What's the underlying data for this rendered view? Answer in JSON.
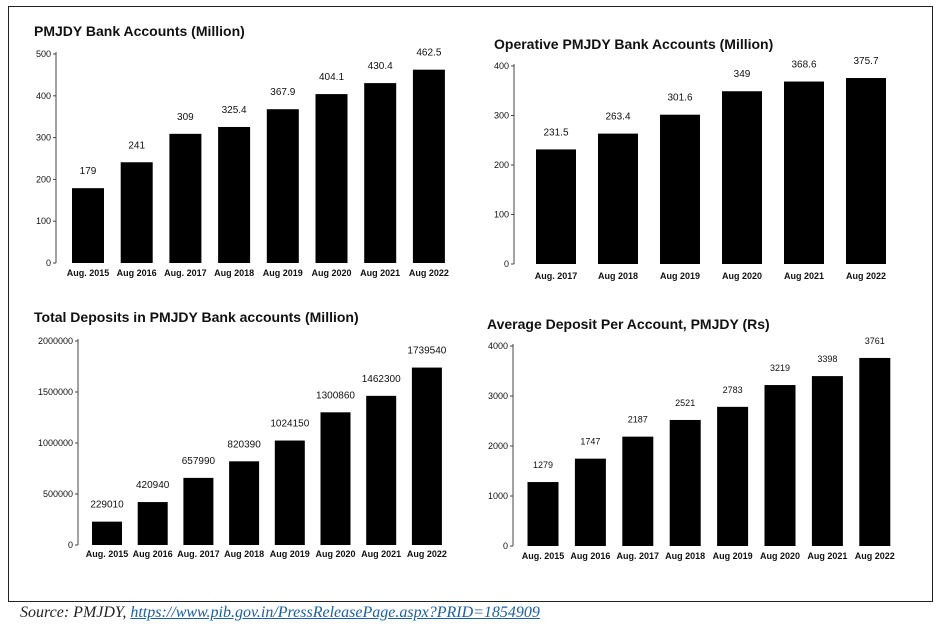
{
  "source": {
    "prefix": "Source: PMJDY, ",
    "link_text": "https://www.pib.gov.in/PressReleasePage.aspx?PRID=1854909"
  },
  "colors": {
    "bar": "#000000",
    "axis": "#444444",
    "text": "#111111"
  },
  "chart_data": [
    {
      "id": "accounts",
      "type": "bar",
      "title": "PMJDY Bank Accounts (Million)",
      "categories": [
        "Aug. 2015",
        "Aug 2016",
        "Aug. 2017",
        "Aug 2018",
        "Aug 2019",
        "Aug 2020",
        "Aug 2021",
        "Aug 2022"
      ],
      "values": [
        179,
        241,
        309,
        325.4,
        367.9,
        404.1,
        430.4,
        462.5
      ],
      "labels": [
        "179",
        "241",
        "309",
        "325.4",
        "367.9",
        "404.1",
        "430.4",
        "462.5"
      ],
      "ylim": [
        0,
        500
      ],
      "yticks": [
        0,
        100,
        200,
        300,
        400,
        500
      ],
      "grid": false
    },
    {
      "id": "operative",
      "type": "bar",
      "title": "Operative PMJDY Bank Accounts (Million)",
      "categories": [
        "Aug. 2017",
        "Aug 2018",
        "Aug 2019",
        "Aug 2020",
        "Aug 2021",
        "Aug 2022"
      ],
      "values": [
        231.5,
        263.4,
        301.6,
        349,
        368.6,
        375.7
      ],
      "labels": [
        "231.5",
        "263.4",
        "301.6",
        "349",
        "368.6",
        "375.7"
      ],
      "ylim": [
        0,
        400
      ],
      "yticks": [
        0,
        100,
        200,
        300,
        400
      ],
      "grid": false
    },
    {
      "id": "deposits",
      "type": "bar",
      "title": "Total Deposits in PMJDY Bank accounts (Million)",
      "categories": [
        "Aug. 2015",
        "Aug 2016",
        "Aug. 2017",
        "Aug 2018",
        "Aug 2019",
        "Aug 2020",
        "Aug 2021",
        "Aug 2022"
      ],
      "values": [
        229010,
        420940,
        657990,
        820390,
        1024150,
        1300860,
        1462300,
        1739540
      ],
      "labels": [
        "229010",
        "420940",
        "657990",
        "820390",
        "1024150",
        "1300860",
        "1462300",
        "1739540"
      ],
      "ylim": [
        0,
        2000000
      ],
      "yticks": [
        0,
        500000,
        1000000,
        1500000,
        2000000
      ],
      "grid": false
    },
    {
      "id": "average",
      "type": "bar",
      "title": "Average Deposit Per Account, PMJDY (Rs)",
      "categories": [
        "Aug. 2015",
        "Aug 2016",
        "Aug. 2017",
        "Aug 2018",
        "Aug 2019",
        "Aug 2020",
        "Aug 2021",
        "Aug 2022"
      ],
      "values": [
        1279,
        1747,
        2187,
        2521,
        2783,
        3219,
        3398,
        3761
      ],
      "labels": [
        "1279",
        "1747",
        "2187",
        "2521",
        "2783",
        "3219",
        "3398",
        "3761"
      ],
      "ylim": [
        0,
        4000
      ],
      "yticks": [
        0,
        1000,
        2000,
        3000,
        4000
      ],
      "grid": false
    }
  ]
}
